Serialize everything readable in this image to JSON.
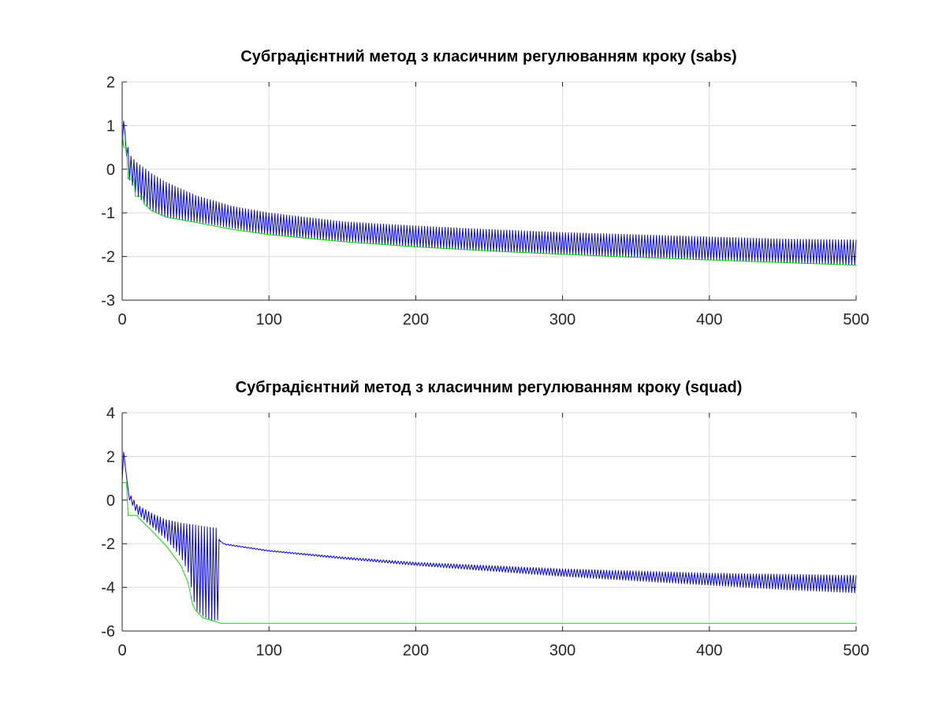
{
  "chart_data": [
    {
      "type": "line",
      "title": "Субградієнтний метод з класичним регулюванням кроку (sabs)",
      "xlabel": "",
      "ylabel": "",
      "xlim": [
        0,
        500
      ],
      "ylim": [
        -3,
        2
      ],
      "xticks": [
        "0",
        "100",
        "200",
        "300",
        "400",
        "500"
      ],
      "yticks": [
        "2",
        "1",
        "0",
        "-1",
        "-2",
        "-3"
      ],
      "grid": true,
      "legend": "none",
      "series": [
        {
          "color": "#0000ff",
          "style": "oscillating",
          "x": [
            0,
            1,
            2,
            4,
            6,
            10,
            20,
            30,
            50,
            75,
            100,
            150,
            200,
            250,
            300,
            350,
            400,
            450,
            500
          ],
          "upper": [
            0.5,
            1.1,
            0.8,
            0.5,
            0.3,
            0.15,
            -0.1,
            -0.3,
            -0.6,
            -0.85,
            -1.0,
            -1.2,
            -1.3,
            -1.38,
            -1.45,
            -1.5,
            -1.55,
            -1.6,
            -1.62
          ],
          "lower": [
            0.5,
            1.1,
            0.8,
            -0.2,
            -0.3,
            -0.6,
            -0.95,
            -1.1,
            -1.2,
            -1.35,
            -1.5,
            -1.65,
            -1.78,
            -1.88,
            -1.95,
            -2.02,
            -2.08,
            -2.14,
            -2.2
          ]
        },
        {
          "color": "#00e000",
          "style": "line",
          "x": [
            0,
            1,
            2,
            3,
            4,
            8,
            9,
            14,
            15,
            20,
            30,
            50,
            75,
            100,
            150,
            200,
            250,
            300,
            350,
            400,
            450,
            500
          ],
          "y": [
            0.9,
            0.5,
            0.5,
            0.5,
            -0.22,
            -0.22,
            -0.62,
            -0.62,
            -0.8,
            -0.95,
            -1.1,
            -1.22,
            -1.38,
            -1.5,
            -1.66,
            -1.78,
            -1.87,
            -1.95,
            -2.02,
            -2.08,
            -2.14,
            -2.2
          ]
        }
      ]
    },
    {
      "type": "line",
      "title": "Субградієнтний метод з класичним регулюванням кроку (squad)",
      "xlabel": "",
      "ylabel": "",
      "xlim": [
        0,
        500
      ],
      "ylim": [
        -6,
        4
      ],
      "xticks": [
        "0",
        "100",
        "200",
        "300",
        "400",
        "500"
      ],
      "yticks": [
        "4",
        "2",
        "0",
        "-2",
        "-4",
        "-6"
      ],
      "grid": true,
      "legend": "none",
      "series": [
        {
          "color": "#0000ff",
          "style": "oscillating",
          "x": [
            0,
            1,
            2,
            4,
            5,
            10,
            20,
            30,
            40,
            45,
            50,
            55,
            60,
            65,
            66,
            67,
            70,
            100,
            150,
            200,
            250,
            300,
            350,
            400,
            450,
            500
          ],
          "upper": [
            0.9,
            2.2,
            1.6,
            0.5,
            0.3,
            -0.2,
            -0.6,
            -0.9,
            -1.05,
            -1.1,
            -1.15,
            -1.2,
            -1.25,
            -1.3,
            -1.8,
            -1.9,
            -2.0,
            -2.3,
            -2.6,
            -2.85,
            -3.0,
            -3.15,
            -3.25,
            -3.35,
            -3.4,
            -3.45
          ],
          "lower": [
            0.9,
            2.2,
            1.6,
            0.5,
            0.0,
            -0.6,
            -1.2,
            -1.8,
            -2.6,
            -3.3,
            -5.0,
            -5.3,
            -5.5,
            -5.5,
            -4.6,
            -1.9,
            -2.05,
            -2.35,
            -2.7,
            -3.0,
            -3.25,
            -3.5,
            -3.7,
            -3.9,
            -4.1,
            -4.25
          ]
        },
        {
          "color": "#00e000",
          "style": "line",
          "x": [
            0,
            1,
            2,
            3,
            4,
            10,
            11,
            20,
            30,
            40,
            45,
            48,
            50,
            55,
            60,
            65,
            67,
            100,
            500
          ],
          "y": [
            0.8,
            0.8,
            0.8,
            0.8,
            -0.7,
            -0.7,
            -0.8,
            -1.4,
            -2.1,
            -3.0,
            -3.8,
            -4.8,
            -5.05,
            -5.4,
            -5.5,
            -5.6,
            -5.65,
            -5.65,
            -5.65
          ]
        }
      ]
    }
  ]
}
